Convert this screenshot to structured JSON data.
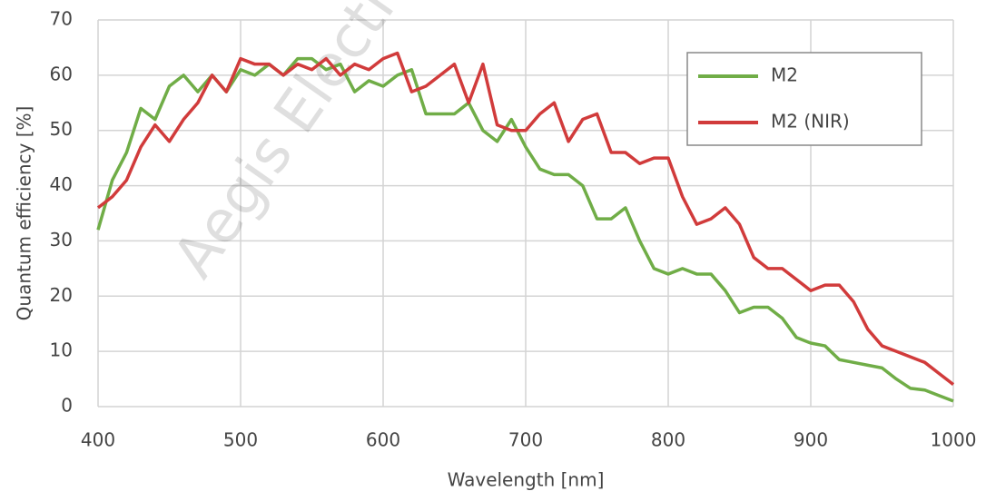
{
  "chart_data": {
    "type": "line",
    "watermark": "Aegis Electronic",
    "x_label": "Wavelength [nm]",
    "y_label": "Quantum efficiency [%]",
    "x": [
      400,
      410,
      420,
      430,
      440,
      450,
      460,
      470,
      480,
      490,
      500,
      510,
      520,
      530,
      540,
      550,
      560,
      570,
      580,
      590,
      600,
      610,
      620,
      630,
      640,
      650,
      660,
      670,
      680,
      690,
      700,
      710,
      720,
      730,
      740,
      750,
      760,
      770,
      780,
      790,
      800,
      810,
      820,
      830,
      840,
      850,
      860,
      870,
      880,
      890,
      900,
      910,
      920,
      930,
      940,
      950,
      960,
      970,
      980,
      990,
      1000
    ],
    "series": [
      {
        "name": "M2",
        "color": "#70ad47",
        "values": [
          32,
          41,
          46,
          54,
          52,
          58,
          60,
          57,
          60,
          57,
          61,
          60,
          62,
          60,
          63,
          63,
          61,
          62,
          57,
          59,
          58,
          60,
          61,
          53,
          53,
          53,
          55,
          50,
          48,
          52,
          47,
          43,
          42,
          42,
          40,
          34,
          34,
          36,
          30,
          25,
          24,
          25,
          24,
          24,
          21,
          17,
          18,
          18,
          16,
          12.5,
          11.5,
          11,
          8.5,
          8,
          7.5,
          7,
          5,
          3.3,
          3,
          2,
          1
        ]
      },
      {
        "name": "M2 (NIR)",
        "color": "#d13b3b",
        "values": [
          36,
          38,
          41,
          47,
          51,
          48,
          52,
          55,
          60,
          57,
          63,
          62,
          62,
          60,
          62,
          61,
          63,
          60,
          62,
          61,
          63,
          64,
          57,
          58,
          60,
          62,
          55,
          62,
          51,
          50,
          50,
          53,
          55,
          48,
          52,
          53,
          46,
          46,
          44,
          45,
          45,
          38,
          33,
          34,
          36,
          33,
          27,
          25,
          25,
          23,
          21,
          22,
          22,
          19,
          14,
          11,
          10,
          9,
          8,
          6,
          4
        ]
      }
    ],
    "xlim": [
      400,
      1000
    ],
    "xticks": [
      400,
      500,
      600,
      700,
      800,
      900,
      1000
    ],
    "ylim": [
      0,
      70
    ],
    "yticks": [
      0,
      10,
      20,
      30,
      40,
      50,
      60,
      70
    ],
    "grid": true,
    "legend": "upper right"
  }
}
